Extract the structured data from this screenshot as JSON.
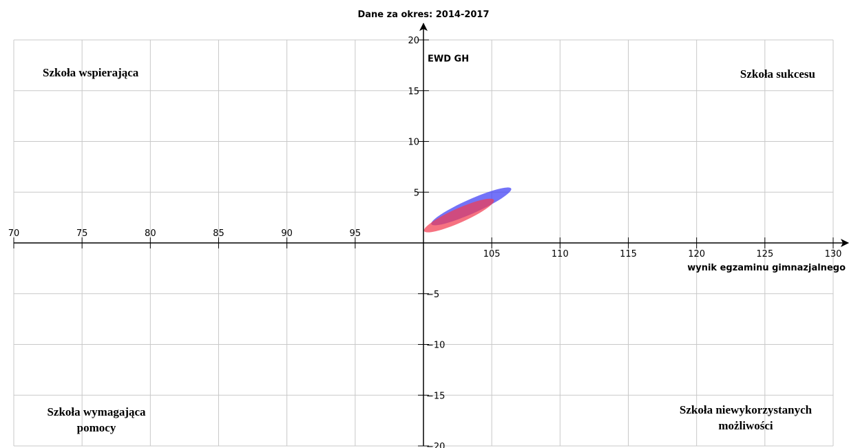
{
  "chart_data": {
    "type": "scatter",
    "title": "Dane za okres: 2014-2017",
    "xlabel": "wynik egzaminu gimnazjalnego",
    "ylabel": "EWD GH",
    "xlim": [
      70,
      130
    ],
    "ylim": [
      -20,
      20
    ],
    "x_ticks": [
      70,
      75,
      80,
      85,
      90,
      95,
      105,
      110,
      115,
      120,
      125,
      130
    ],
    "y_ticks": [
      20,
      15,
      10,
      5,
      -5,
      -10,
      -15,
      -20
    ],
    "grid": true,
    "quadrants": {
      "top_left": [
        "Szkoła wspierająca"
      ],
      "top_right": [
        "Szkoła sukcesu"
      ],
      "bottom_left": [
        "Szkoła wymagająca",
        "pomocy"
      ],
      "bottom_right": [
        "Szkoła niewykorzystanych",
        "możliwości"
      ]
    },
    "series": [
      {
        "color": "#3d3df5",
        "center": [
          103.5,
          3.6
        ],
        "x_radius": 3.2,
        "y_radius": 0.7,
        "angle_deg": 24
      },
      {
        "color": "#f23b50",
        "center": [
          102.6,
          2.7
        ],
        "x_radius": 2.8,
        "y_radius": 0.7,
        "angle_deg": 24
      }
    ]
  }
}
